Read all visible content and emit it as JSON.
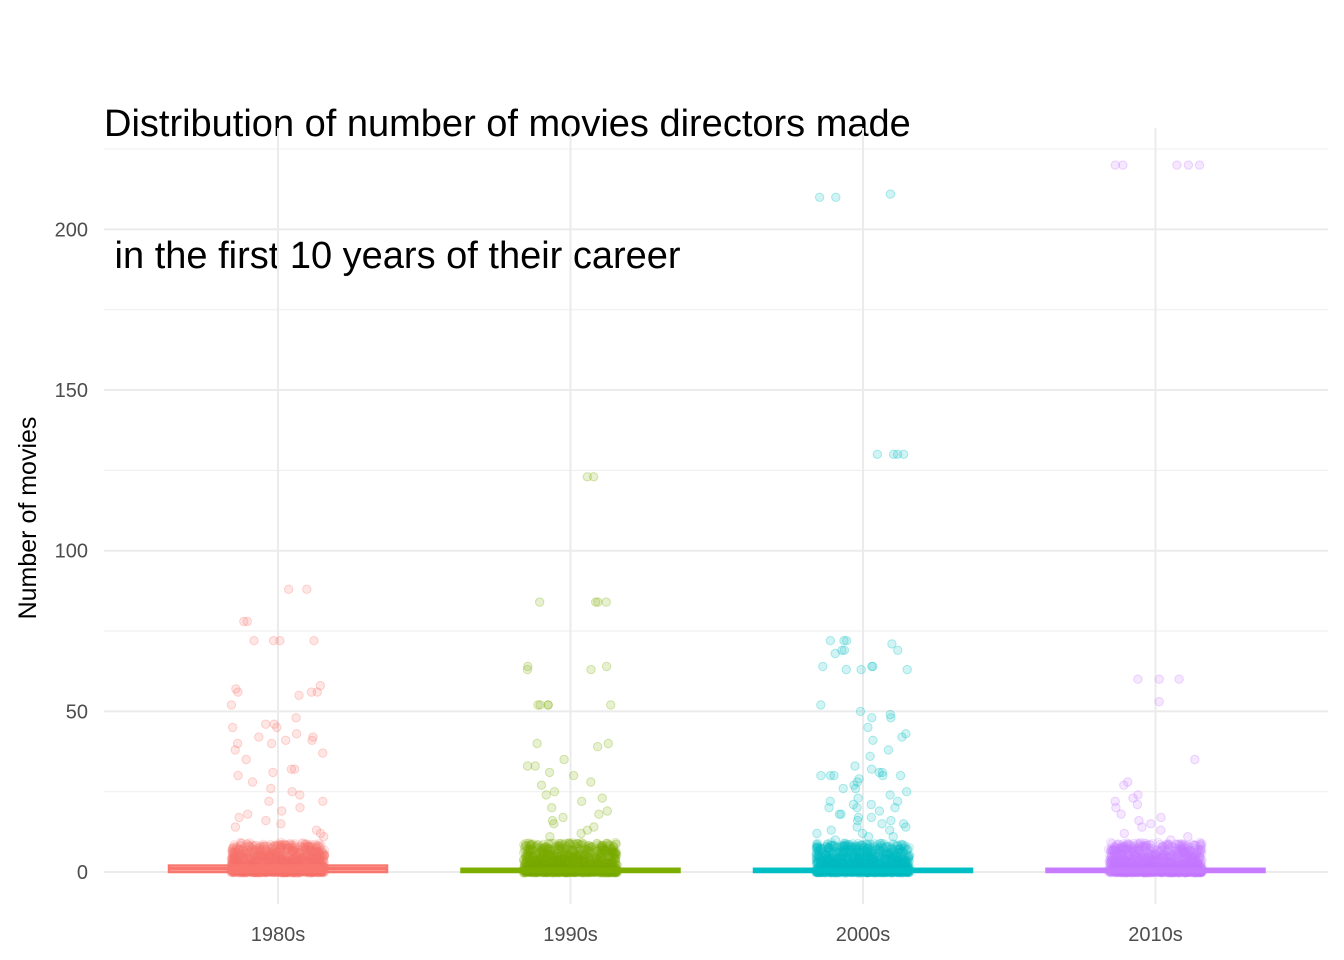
{
  "chart_data": {
    "type": "scatter",
    "subtype": "boxplot-with-jitter",
    "title_lines": [
      "Distribution of number of movies directors made",
      " in the first 10 years of their career"
    ],
    "xlabel": "",
    "ylabel": "Number of movies",
    "categories": [
      "1980s",
      "1990s",
      "2000s",
      "2010s"
    ],
    "colors": [
      "#F8766D",
      "#7CAE00",
      "#00BFC4",
      "#C77CFF"
    ],
    "ylim": [
      -11,
      226
    ],
    "yticks": [
      0,
      50,
      100,
      150,
      200
    ],
    "grid": true,
    "legend": "none",
    "box_stats": [
      {
        "q1": 0,
        "median": 1,
        "q3": 2
      },
      {
        "q1": 0,
        "median": 0.5,
        "q3": 1
      },
      {
        "q1": 0,
        "median": 0.5,
        "q3": 1
      },
      {
        "q1": 0,
        "median": 0.5,
        "q3": 1
      }
    ],
    "outliers": [
      [
        88,
        88,
        78,
        78,
        72,
        72,
        72,
        72,
        58,
        57,
        56,
        56,
        56,
        55,
        52,
        48,
        46,
        46,
        45,
        45,
        43,
        42,
        42,
        41,
        41,
        40,
        40,
        38,
        37,
        35,
        32,
        32,
        31,
        30,
        28,
        26,
        25,
        24,
        22,
        22,
        20,
        19,
        18,
        17,
        16,
        15,
        14,
        13,
        12,
        11
      ],
      [
        123,
        123,
        84,
        84,
        84,
        84,
        64,
        64,
        63,
        63,
        52,
        52,
        52,
        52,
        52,
        40,
        40,
        39,
        35,
        33,
        33,
        31,
        30,
        28,
        27,
        25,
        24,
        23,
        22,
        20,
        19,
        18,
        17,
        16,
        15,
        14,
        13,
        12,
        11
      ],
      [
        210,
        211,
        210,
        130,
        130,
        130,
        130,
        72,
        72,
        72,
        71,
        69,
        69,
        69,
        68,
        64,
        64,
        64,
        63,
        63,
        63,
        52,
        50,
        49,
        48,
        48,
        45,
        43,
        42,
        41,
        38,
        36,
        33,
        32,
        31,
        31,
        30,
        30,
        30,
        30,
        30,
        29,
        28,
        27,
        26,
        26,
        25,
        24,
        23,
        22,
        22,
        21,
        21,
        20,
        20,
        20,
        19,
        18,
        18,
        17,
        17,
        16,
        16,
        15,
        15,
        14,
        14,
        13,
        13,
        12,
        12,
        11,
        11,
        10
      ],
      [
        220,
        220,
        220,
        220,
        220,
        60,
        60,
        60,
        53,
        35,
        28,
        27,
        24,
        23,
        22,
        21,
        20,
        18,
        17,
        16,
        15,
        14,
        13,
        12,
        11,
        10
      ]
    ]
  }
}
